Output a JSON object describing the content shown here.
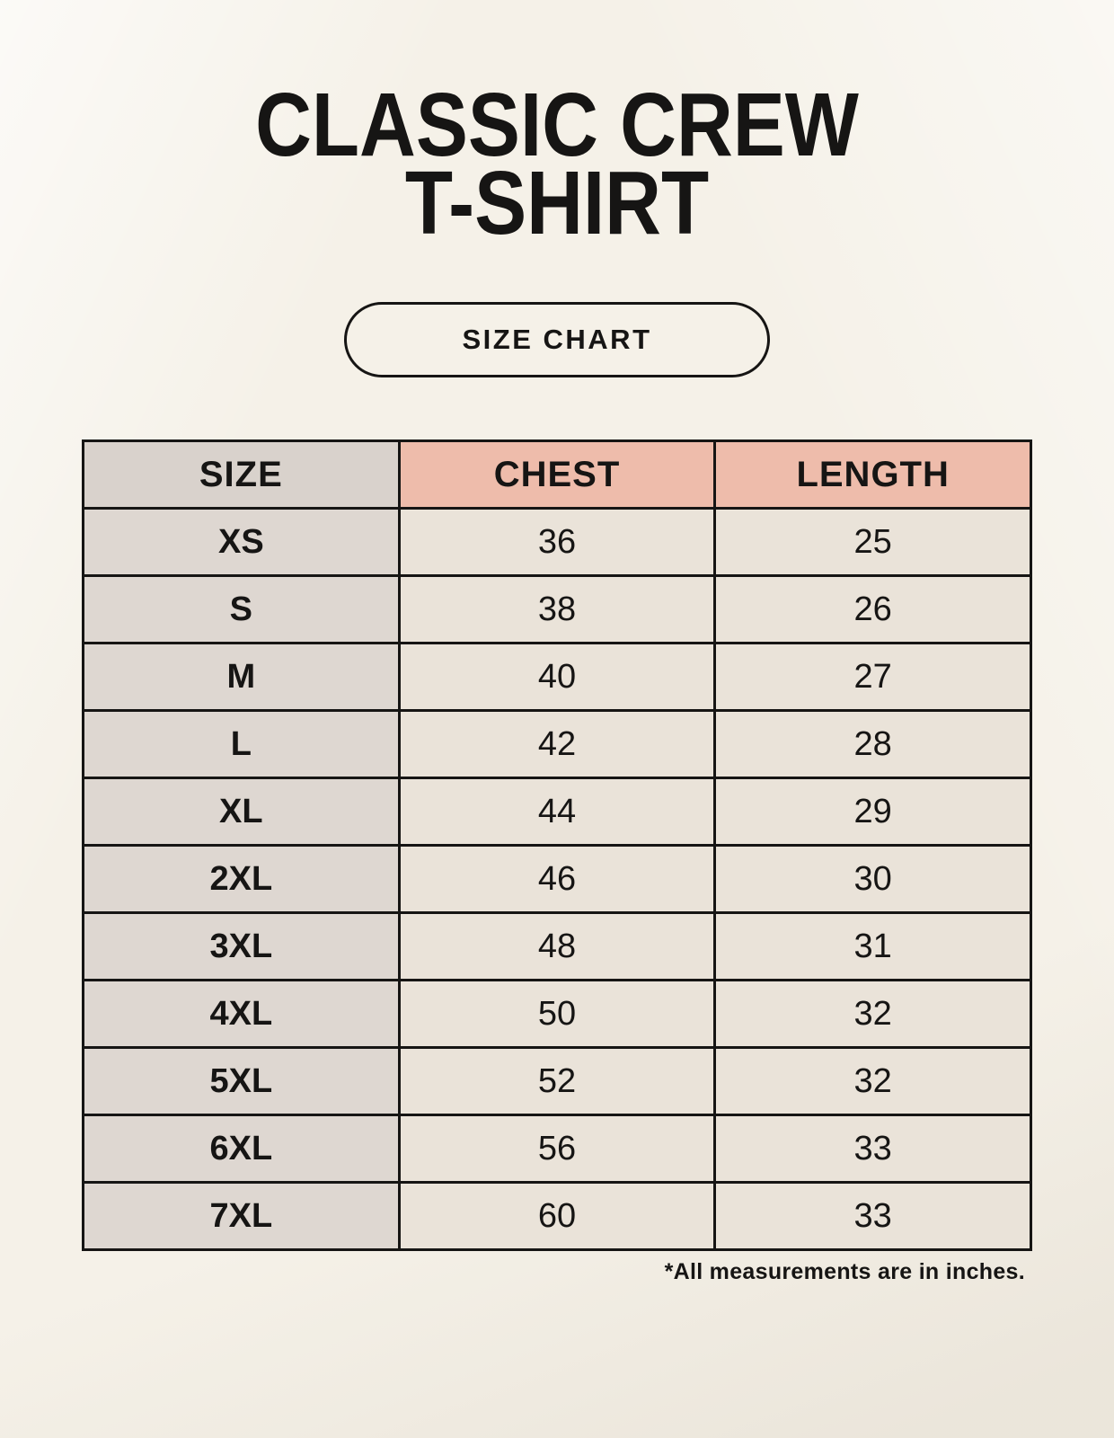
{
  "header": {
    "title_line1": "CLASSIC CREW",
    "title_line2": "T-SHIRT"
  },
  "size_chart_button": {
    "label": "SIZE CHART"
  },
  "table": {
    "columns": [
      "SIZE",
      "CHEST",
      "LENGTH"
    ],
    "rows": [
      {
        "size": "XS",
        "chest": "36",
        "length": "25"
      },
      {
        "size": "S",
        "chest": "38",
        "length": "26"
      },
      {
        "size": "M",
        "chest": "40",
        "length": "27"
      },
      {
        "size": "L",
        "chest": "42",
        "length": "28"
      },
      {
        "size": "XL",
        "chest": "44",
        "length": "29"
      },
      {
        "size": "2XL",
        "chest": "46",
        "length": "30"
      },
      {
        "size": "3XL",
        "chest": "48",
        "length": "31"
      },
      {
        "size": "4XL",
        "chest": "50",
        "length": "32"
      },
      {
        "size": "5XL",
        "chest": "52",
        "length": "32"
      },
      {
        "size": "6XL",
        "chest": "56",
        "length": "33"
      },
      {
        "size": "7XL",
        "chest": "60",
        "length": "33"
      }
    ]
  },
  "footnote": {
    "text": "*All measurements are in inches."
  },
  "colors": {
    "background": "#f5f1e8",
    "header_size_bg": "#d9d2cc",
    "header_measure_bg": "#eebcab",
    "row_size_bg": "#ded7d1",
    "row_value_bg": "#eae3d9",
    "border": "#161514",
    "text": "#161514"
  }
}
